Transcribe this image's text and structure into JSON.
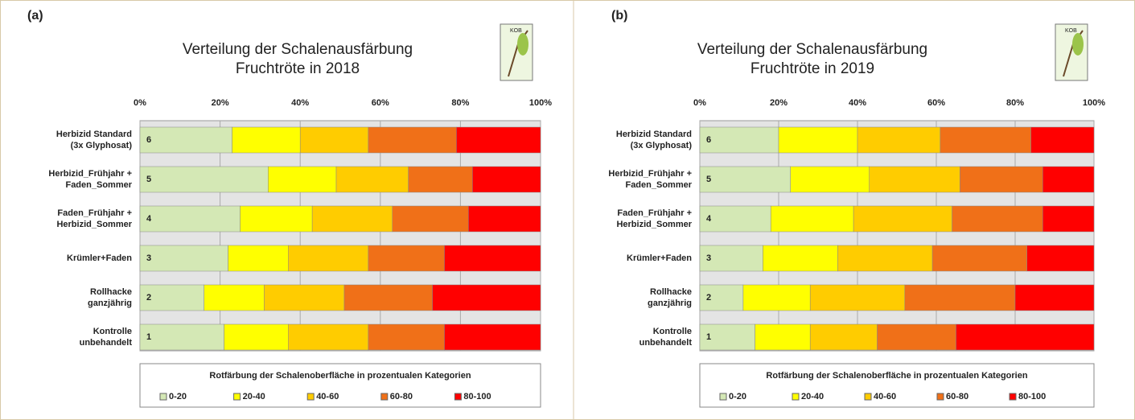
{
  "chart_data": [
    {
      "type": "stacked_barh",
      "panel_label": "(a)",
      "title": [
        "Verteilung der Schalenausfärbung",
        "Fruchtröte in 2018"
      ],
      "logo_text": "KOB",
      "categories": [
        [
          "Herbizid Standard",
          "(3x Glyphosat)"
        ],
        [
          "Herbizid_Frühjahr +",
          "Faden_Sommer"
        ],
        [
          "Faden_Frühjahr +",
          "Herbizid_Sommer"
        ],
        [
          "Krümler+Faden"
        ],
        [
          "Rollhacke",
          "ganzjährig"
        ],
        [
          "Kontrolle",
          "unbehandelt"
        ]
      ],
      "row_labels": [
        "6",
        "5",
        "4",
        "3",
        "2",
        "1"
      ],
      "xlim": [
        0,
        100
      ],
      "xticks": [
        {
          "value": 0,
          "label": "0%"
        },
        {
          "value": 20,
          "label": "20%"
        },
        {
          "value": 40,
          "label": "40%"
        },
        {
          "value": 60,
          "label": "60%"
        },
        {
          "value": 80,
          "label": "80%"
        },
        {
          "value": 100,
          "label": "100%"
        }
      ],
      "legend_title": "Rotfärbung der Schalenoberfläche in prozentualen Kategorien",
      "series": [
        {
          "name": "0-20",
          "color": "#d4e8b5",
          "values": [
            23,
            32,
            25,
            22,
            16,
            21
          ]
        },
        {
          "name": "20-40",
          "color": "#ffff00",
          "values": [
            17,
            17,
            18,
            15,
            15,
            16
          ]
        },
        {
          "name": "40-60",
          "color": "#ffcc00",
          "values": [
            17,
            18,
            20,
            20,
            20,
            20
          ]
        },
        {
          "name": "60-80",
          "color": "#f07018",
          "values": [
            22,
            16,
            19,
            19,
            22,
            19
          ]
        },
        {
          "name": "80-100",
          "color": "#ff0000",
          "values": [
            21,
            17,
            18,
            24,
            27,
            24
          ]
        }
      ]
    },
    {
      "type": "stacked_barh",
      "panel_label": "(b)",
      "title": [
        "Verteilung der Schalenausfärbung",
        "Fruchtröte in 2019"
      ],
      "logo_text": "KOB",
      "categories": [
        [
          "Herbizid Standard",
          "(3x Glyphosat)"
        ],
        [
          "Herbizid_Frühjahr +",
          "Faden_Sommer"
        ],
        [
          "Faden_Frühjahr +",
          "Herbizid_Sommer"
        ],
        [
          "Krümler+Faden"
        ],
        [
          "Rollhacke",
          "ganzjährig"
        ],
        [
          "Kontrolle",
          "unbehandelt"
        ]
      ],
      "row_labels": [
        "6",
        "5",
        "4",
        "3",
        "2",
        "1"
      ],
      "xlim": [
        0,
        100
      ],
      "xticks": [
        {
          "value": 0,
          "label": "0%"
        },
        {
          "value": 20,
          "label": "20%"
        },
        {
          "value": 40,
          "label": "40%"
        },
        {
          "value": 60,
          "label": "60%"
        },
        {
          "value": 80,
          "label": "80%"
        },
        {
          "value": 100,
          "label": "100%"
        }
      ],
      "legend_title": "Rotfärbung der Schalenoberfläche in prozentualen Kategorien",
      "series": [
        {
          "name": "0-20",
          "color": "#d4e8b5",
          "values": [
            20,
            23,
            18,
            16,
            11,
            14
          ]
        },
        {
          "name": "20-40",
          "color": "#ffff00",
          "values": [
            20,
            20,
            21,
            19,
            17,
            14
          ]
        },
        {
          "name": "40-60",
          "color": "#ffcc00",
          "values": [
            21,
            23,
            25,
            24,
            24,
            17
          ]
        },
        {
          "name": "60-80",
          "color": "#f07018",
          "values": [
            23,
            21,
            23,
            24,
            28,
            20
          ]
        },
        {
          "name": "80-100",
          "color": "#ff0000",
          "values": [
            16,
            13,
            13,
            17,
            20,
            35
          ]
        }
      ]
    }
  ]
}
